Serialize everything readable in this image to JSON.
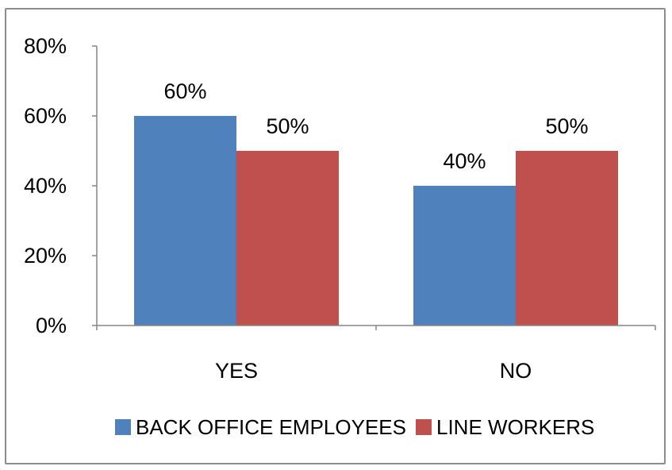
{
  "chart_data": {
    "type": "bar",
    "categories": [
      "YES",
      "NO"
    ],
    "series": [
      {
        "name": "BACK OFFICE EMPLOYEES",
        "values": [
          60,
          40
        ],
        "value_labels": [
          "60%",
          "40%"
        ],
        "color": "#4f81bd"
      },
      {
        "name": "LINE WORKERS",
        "values": [
          50,
          50
        ],
        "value_labels": [
          "50%",
          "50%"
        ],
        "color": "#c0504d"
      }
    ],
    "ylim": [
      0,
      80
    ],
    "yticks": [
      0,
      20,
      40,
      60,
      80
    ],
    "ytick_labels": [
      "0%",
      "20%",
      "40%",
      "60%",
      "80%"
    ],
    "grid": false,
    "legend_position": "bottom",
    "title": "",
    "xlabel": "",
    "ylabel": ""
  }
}
